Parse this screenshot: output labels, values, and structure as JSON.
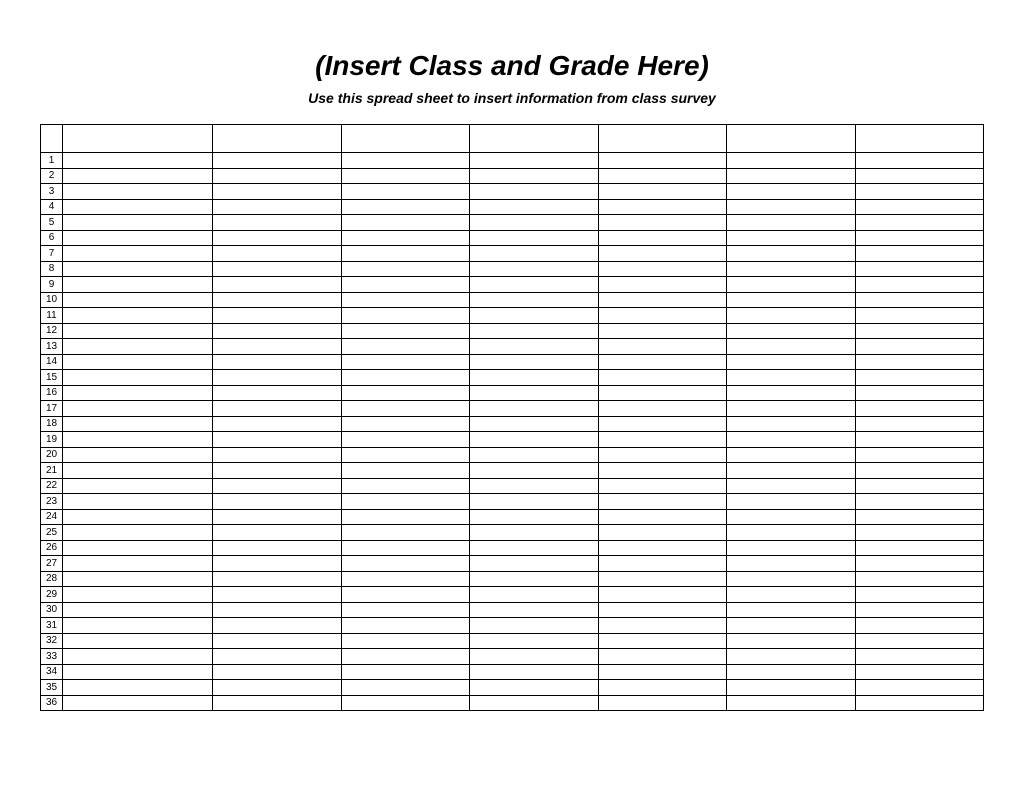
{
  "document": {
    "title": "(Insert Class and Grade Here)",
    "subtitle": "Use this spread sheet to insert information from class survey",
    "title_fontsize": 28,
    "subtitle_fontsize": 14,
    "title_style": "bold italic",
    "subtitle_style": "bold italic"
  },
  "table": {
    "type": "table",
    "num_columns": 8,
    "num_data_rows": 36,
    "column_headers": [
      "",
      "",
      "",
      "",
      "",
      "",
      "",
      ""
    ],
    "row_numbers": [
      1,
      2,
      3,
      4,
      5,
      6,
      7,
      8,
      9,
      10,
      11,
      12,
      13,
      14,
      15,
      16,
      17,
      18,
      19,
      20,
      21,
      22,
      23,
      24,
      25,
      26,
      27,
      28,
      29,
      30,
      31,
      32,
      33,
      34,
      35,
      36
    ],
    "row_number_col_width": 22,
    "first_data_col_width": 150,
    "header_row_height": 28,
    "data_row_height": 15.5,
    "border_color": "#000000",
    "border_width": 1,
    "background_color": "#ffffff",
    "row_number_fontsize": 10,
    "row_number_alignment": "center"
  }
}
